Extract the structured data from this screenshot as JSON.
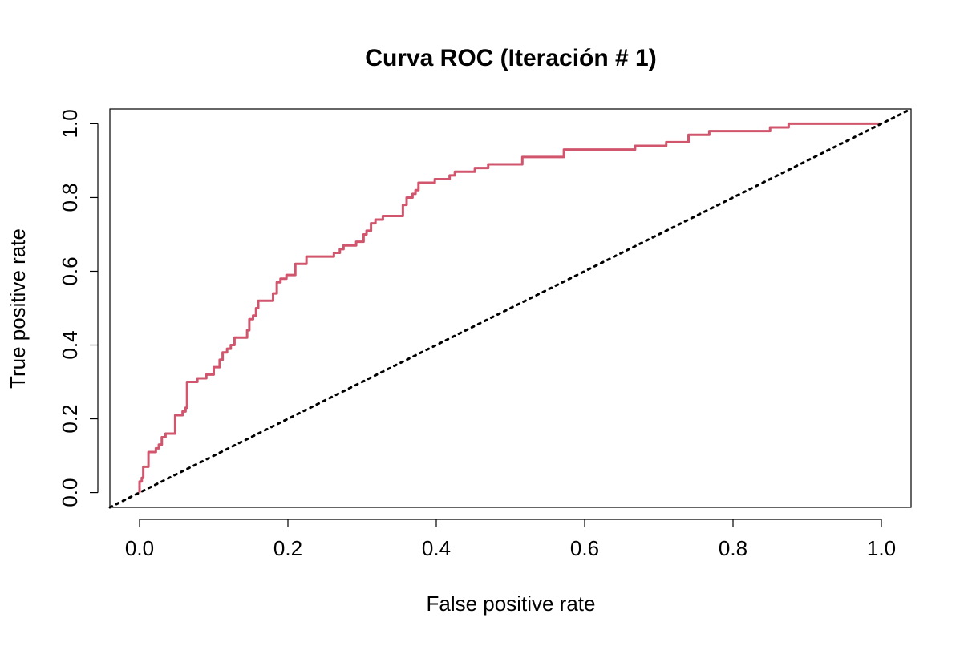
{
  "chart_data": {
    "type": "line",
    "title": "Curva ROC (Iteración # 1)",
    "xlabel": "False positive rate",
    "ylabel": "True positive rate",
    "xlim": [
      -0.04,
      1.04
    ],
    "ylim": [
      -0.04,
      1.04
    ],
    "x_ticks": [
      0.0,
      0.2,
      0.4,
      0.6,
      0.8,
      1.0
    ],
    "y_ticks": [
      0.0,
      0.2,
      0.4,
      0.6,
      0.8,
      1.0
    ],
    "x_tick_labels": [
      "0.0",
      "0.2",
      "0.4",
      "0.6",
      "0.8",
      "1.0"
    ],
    "y_tick_labels": [
      "0.0",
      "0.2",
      "0.4",
      "0.6",
      "0.8",
      "1.0"
    ],
    "grid": false,
    "series": [
      {
        "color": "#d1556c",
        "style": "solid",
        "points": [
          [
            0.0,
            0.0
          ],
          [
            0.0,
            0.03
          ],
          [
            0.003,
            0.03
          ],
          [
            0.003,
            0.04
          ],
          [
            0.005,
            0.04
          ],
          [
            0.005,
            0.07
          ],
          [
            0.012,
            0.07
          ],
          [
            0.012,
            0.11
          ],
          [
            0.022,
            0.11
          ],
          [
            0.022,
            0.12
          ],
          [
            0.026,
            0.12
          ],
          [
            0.026,
            0.13
          ],
          [
            0.03,
            0.13
          ],
          [
            0.03,
            0.15
          ],
          [
            0.035,
            0.15
          ],
          [
            0.035,
            0.16
          ],
          [
            0.048,
            0.16
          ],
          [
            0.048,
            0.21
          ],
          [
            0.058,
            0.21
          ],
          [
            0.058,
            0.22
          ],
          [
            0.062,
            0.22
          ],
          [
            0.062,
            0.23
          ],
          [
            0.064,
            0.23
          ],
          [
            0.064,
            0.3
          ],
          [
            0.078,
            0.3
          ],
          [
            0.078,
            0.31
          ],
          [
            0.09,
            0.31
          ],
          [
            0.09,
            0.32
          ],
          [
            0.1,
            0.32
          ],
          [
            0.1,
            0.34
          ],
          [
            0.108,
            0.34
          ],
          [
            0.108,
            0.36
          ],
          [
            0.112,
            0.36
          ],
          [
            0.112,
            0.38
          ],
          [
            0.118,
            0.38
          ],
          [
            0.118,
            0.39
          ],
          [
            0.123,
            0.39
          ],
          [
            0.123,
            0.4
          ],
          [
            0.128,
            0.4
          ],
          [
            0.128,
            0.42
          ],
          [
            0.145,
            0.42
          ],
          [
            0.145,
            0.44
          ],
          [
            0.148,
            0.44
          ],
          [
            0.148,
            0.47
          ],
          [
            0.153,
            0.47
          ],
          [
            0.153,
            0.48
          ],
          [
            0.157,
            0.48
          ],
          [
            0.157,
            0.5
          ],
          [
            0.16,
            0.5
          ],
          [
            0.16,
            0.52
          ],
          [
            0.18,
            0.52
          ],
          [
            0.18,
            0.54
          ],
          [
            0.185,
            0.54
          ],
          [
            0.185,
            0.57
          ],
          [
            0.19,
            0.57
          ],
          [
            0.19,
            0.58
          ],
          [
            0.198,
            0.58
          ],
          [
            0.198,
            0.59
          ],
          [
            0.21,
            0.59
          ],
          [
            0.21,
            0.62
          ],
          [
            0.225,
            0.62
          ],
          [
            0.225,
            0.64
          ],
          [
            0.262,
            0.64
          ],
          [
            0.262,
            0.65
          ],
          [
            0.27,
            0.65
          ],
          [
            0.27,
            0.66
          ],
          [
            0.275,
            0.66
          ],
          [
            0.275,
            0.67
          ],
          [
            0.292,
            0.67
          ],
          [
            0.292,
            0.68
          ],
          [
            0.302,
            0.68
          ],
          [
            0.302,
            0.7
          ],
          [
            0.306,
            0.7
          ],
          [
            0.306,
            0.71
          ],
          [
            0.312,
            0.71
          ],
          [
            0.312,
            0.73
          ],
          [
            0.318,
            0.73
          ],
          [
            0.318,
            0.74
          ],
          [
            0.328,
            0.74
          ],
          [
            0.328,
            0.75
          ],
          [
            0.355,
            0.75
          ],
          [
            0.355,
            0.78
          ],
          [
            0.36,
            0.78
          ],
          [
            0.36,
            0.8
          ],
          [
            0.368,
            0.8
          ],
          [
            0.368,
            0.81
          ],
          [
            0.372,
            0.81
          ],
          [
            0.372,
            0.82
          ],
          [
            0.376,
            0.82
          ],
          [
            0.376,
            0.84
          ],
          [
            0.398,
            0.84
          ],
          [
            0.398,
            0.85
          ],
          [
            0.418,
            0.85
          ],
          [
            0.418,
            0.86
          ],
          [
            0.425,
            0.86
          ],
          [
            0.425,
            0.87
          ],
          [
            0.452,
            0.87
          ],
          [
            0.452,
            0.88
          ],
          [
            0.47,
            0.88
          ],
          [
            0.47,
            0.89
          ],
          [
            0.516,
            0.89
          ],
          [
            0.516,
            0.91
          ],
          [
            0.572,
            0.91
          ],
          [
            0.572,
            0.93
          ],
          [
            0.668,
            0.93
          ],
          [
            0.668,
            0.94
          ],
          [
            0.71,
            0.94
          ],
          [
            0.71,
            0.95
          ],
          [
            0.74,
            0.95
          ],
          [
            0.74,
            0.97
          ],
          [
            0.768,
            0.97
          ],
          [
            0.768,
            0.98
          ],
          [
            0.85,
            0.98
          ],
          [
            0.85,
            0.99
          ],
          [
            0.875,
            0.99
          ],
          [
            0.875,
            1.0
          ],
          [
            1.0,
            1.0
          ]
        ]
      },
      {
        "color": "#000000",
        "style": "dotted",
        "points": [
          [
            -0.04,
            -0.04
          ],
          [
            1.04,
            1.04
          ]
        ]
      }
    ]
  }
}
